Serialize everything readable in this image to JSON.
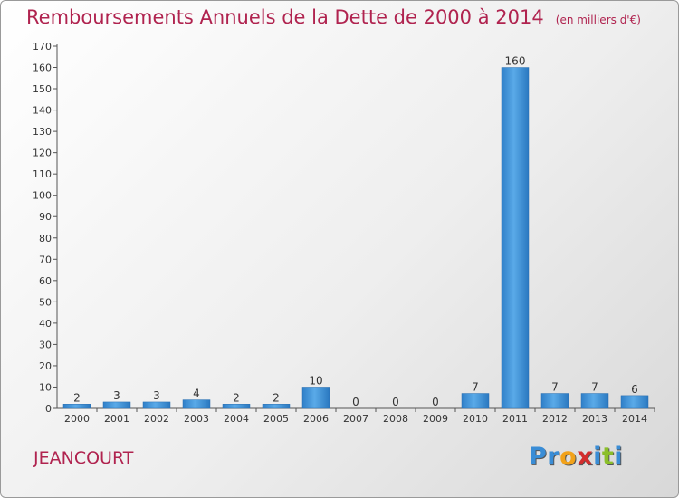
{
  "title": "Remboursements Annuels de la Dette de 2000 à 2014",
  "unit_note": "(en milliers d'€)",
  "commune": "JEANCOURT",
  "logo": {
    "letters": [
      {
        "char": "P",
        "color": "#3a8dd6"
      },
      {
        "char": "r",
        "color": "#3a8dd6"
      },
      {
        "char": "o",
        "color": "#f2a21a"
      },
      {
        "char": "x",
        "color": "#d32d2d"
      },
      {
        "char": "i",
        "color": "#3a8dd6"
      },
      {
        "char": "t",
        "color": "#8bbf2a"
      },
      {
        "char": "i",
        "color": "#3a8dd6"
      }
    ]
  },
  "chart_data": {
    "type": "bar",
    "categories": [
      "2000",
      "2001",
      "2002",
      "2003",
      "2004",
      "2005",
      "2006",
      "2007",
      "2008",
      "2009",
      "2010",
      "2011",
      "2012",
      "2013",
      "2014"
    ],
    "values": [
      2,
      3,
      3,
      4,
      2,
      2,
      10,
      0,
      0,
      0,
      7,
      160,
      7,
      7,
      6
    ],
    "data_labels": [
      "2",
      "3",
      "3",
      "4",
      "2",
      "2",
      "10",
      "0",
      "0",
      "0",
      "7",
      "160",
      "7",
      "7",
      "6"
    ],
    "ylim": [
      0,
      170
    ],
    "yticks": [
      0,
      10,
      20,
      30,
      40,
      50,
      60,
      70,
      80,
      90,
      100,
      110,
      120,
      130,
      140,
      150,
      160,
      170
    ],
    "grid": false,
    "bar_color": "#3d8fd6"
  }
}
